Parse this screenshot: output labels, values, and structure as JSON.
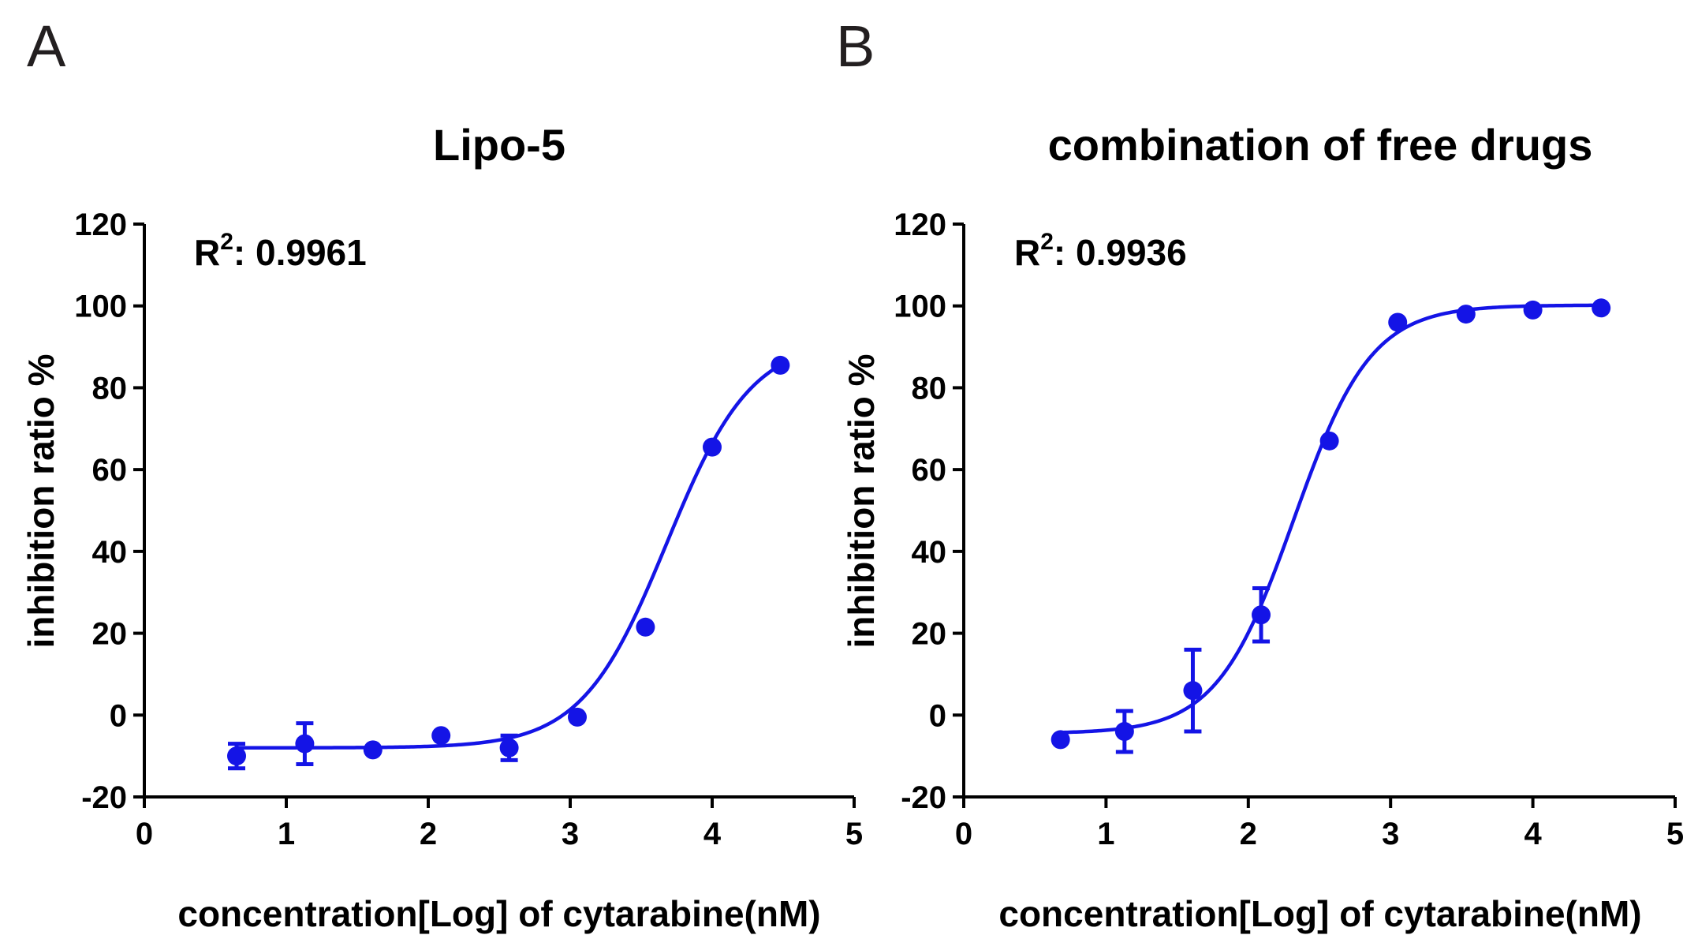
{
  "panels": [
    {
      "letter": "A",
      "r2_label": "R",
      "r2_sup": "2",
      "r2_value": ": 0.9961"
    },
    {
      "letter": "B",
      "r2_label": "R",
      "r2_sup": "2",
      "r2_value": ": 0.9936"
    }
  ],
  "colors": {
    "series": "#1414e6",
    "axis": "#000000"
  },
  "chart_data": [
    {
      "type": "scatter",
      "title": "Lipo-5",
      "xlabel": "concentration[Log] of cytarabine(nM)",
      "ylabel": "inhibition ratio %",
      "xlim": [
        0,
        5
      ],
      "ylim": [
        -20,
        120
      ],
      "xticks": [
        0,
        1,
        2,
        3,
        4,
        5
      ],
      "yticks": [
        -20,
        0,
        20,
        40,
        60,
        80,
        100,
        120
      ],
      "grid": false,
      "series": [
        {
          "points": [
            {
              "x": 0.65,
              "y": -10,
              "err": 3
            },
            {
              "x": 1.13,
              "y": -7,
              "err": 5
            },
            {
              "x": 1.61,
              "y": -8.5,
              "err": 1
            },
            {
              "x": 2.09,
              "y": -5,
              "err": 1
            },
            {
              "x": 2.57,
              "y": -8,
              "err": 3
            },
            {
              "x": 3.05,
              "y": -0.5,
              "err": 1
            },
            {
              "x": 3.53,
              "y": 21.5,
              "err": 1
            },
            {
              "x": 4.0,
              "y": 65.5,
              "err": 1
            },
            {
              "x": 4.48,
              "y": 85.5,
              "err": 1
            }
          ],
          "fit": {
            "model": "four-parameter logistic",
            "bottom": -8,
            "top": 92,
            "logEC50": 3.68,
            "hill": 1.45,
            "x_range": [
              0.65,
              4.48
            ]
          }
        }
      ]
    },
    {
      "type": "scatter",
      "title": "combination of free drugs",
      "xlabel": "concentration[Log] of cytarabine(nM)",
      "ylabel": "inhibition ratio %",
      "xlim": [
        0,
        5
      ],
      "ylim": [
        -20,
        120
      ],
      "xticks": [
        0,
        1,
        2,
        3,
        4,
        5
      ],
      "yticks": [
        -20,
        0,
        20,
        40,
        60,
        80,
        100,
        120
      ],
      "grid": false,
      "series": [
        {
          "points": [
            {
              "x": 0.68,
              "y": -6,
              "err": 1
            },
            {
              "x": 1.13,
              "y": -4,
              "err": 5
            },
            {
              "x": 1.61,
              "y": 6,
              "err": 10
            },
            {
              "x": 2.09,
              "y": 24.5,
              "err": 6.5
            },
            {
              "x": 2.57,
              "y": 67,
              "err": 1
            },
            {
              "x": 3.05,
              "y": 96,
              "err": 1
            },
            {
              "x": 3.53,
              "y": 98,
              "err": 1
            },
            {
              "x": 4.0,
              "y": 99,
              "err": 1
            },
            {
              "x": 4.48,
              "y": 99.5,
              "err": 1
            }
          ],
          "fit": {
            "model": "four-parameter logistic",
            "bottom": -4.5,
            "top": 100.2,
            "logEC50": 2.32,
            "hill": 1.6,
            "x_range": [
              0.68,
              4.48
            ]
          }
        }
      ]
    }
  ]
}
